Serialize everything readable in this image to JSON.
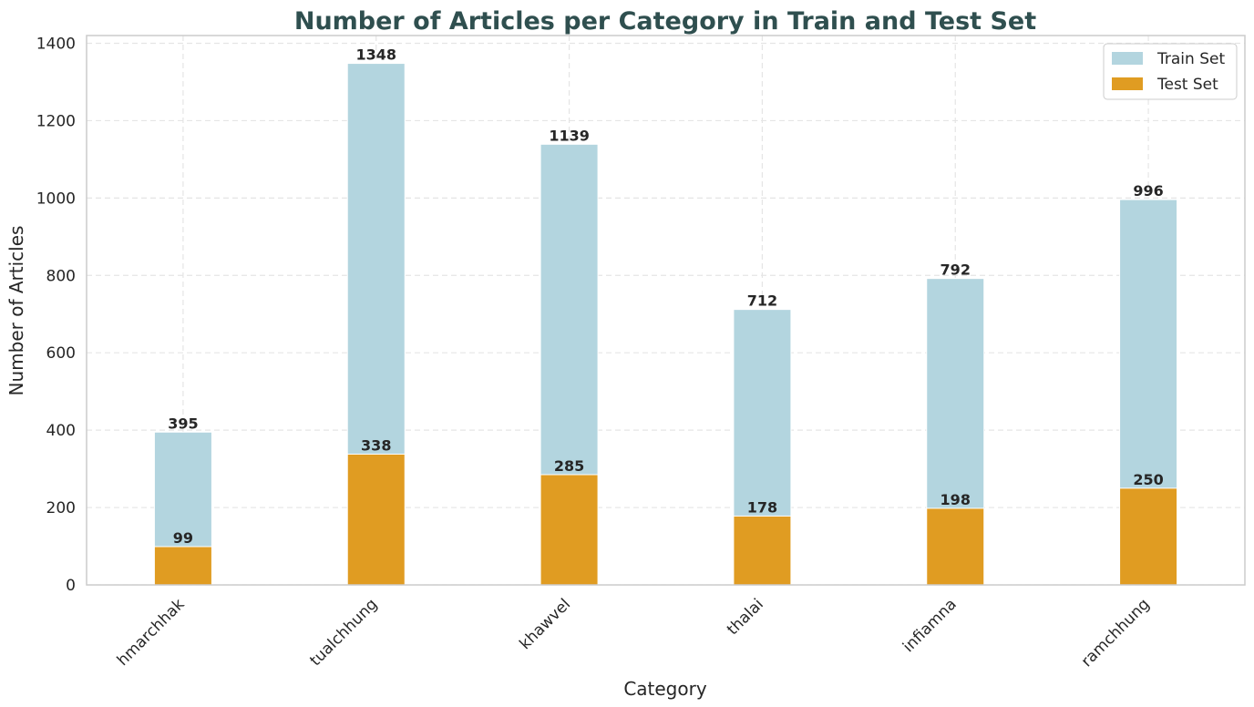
{
  "chart_data": {
    "type": "bar",
    "title": "Number of Articles per Category in Train and Test Set",
    "xlabel": "Category",
    "ylabel": "Number of Articles",
    "categories": [
      "hmarchhak",
      "tualchhung",
      "khawvel",
      "thalai",
      "infiamna",
      "ramchhung"
    ],
    "series": [
      {
        "name": "Train Set",
        "values": [
          395,
          1348,
          1139,
          712,
          792,
          996
        ],
        "color": "#b3d5df"
      },
      {
        "name": "Test Set",
        "values": [
          99,
          338,
          285,
          178,
          198,
          250
        ],
        "color": "#e09c22"
      }
    ],
    "ylim": [
      0,
      1420
    ],
    "yticks": [
      0,
      200,
      400,
      600,
      800,
      1000,
      1200,
      1400
    ],
    "grid": true,
    "legend": "top-right",
    "overlaid": true
  }
}
